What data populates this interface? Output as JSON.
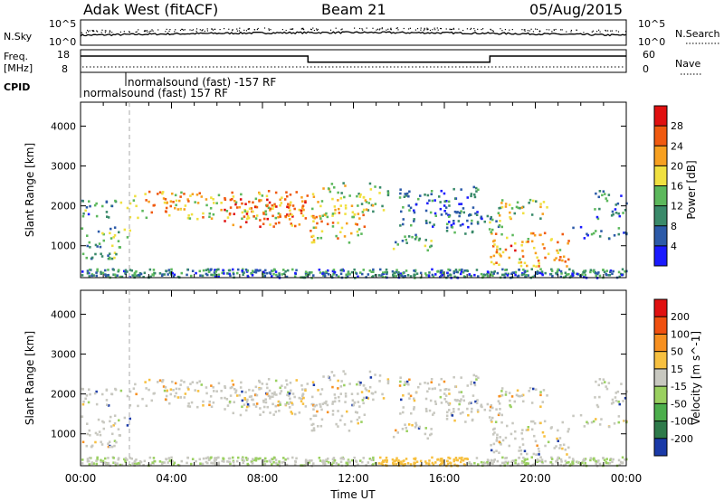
{
  "header": {
    "station": "Adak West (fitACF)",
    "beam": "Beam 21",
    "date": "05/Aug/2015"
  },
  "chart_data": [
    {
      "type": "line",
      "panel": "noise",
      "left_label": "N.Sky",
      "right_label": "N.Search",
      "left_ticks": [
        "10^5",
        "10^0"
      ],
      "right_ticks": [
        "10^5",
        "10^0"
      ]
    },
    {
      "type": "line",
      "panel": "frequency",
      "left_label_top": "Freq.",
      "left_label_bottom": "[MHz]",
      "left_ticks": [
        "18",
        "8"
      ],
      "right_ticks": [
        "60",
        "0"
      ],
      "right_label": "Nave",
      "freq_steps": [
        {
          "start_hour": 0,
          "end_hour": 10,
          "level": 0.72
        },
        {
          "start_hour": 10,
          "end_hour": 18,
          "level": 0.45
        },
        {
          "start_hour": 18,
          "end_hour": 24,
          "level": 0.72
        }
      ]
    },
    {
      "type": "table",
      "panel": "cpid",
      "label": "CPID",
      "entries": [
        {
          "text": "normalsound (fast) -157 RF",
          "start_hour": 2.0
        },
        {
          "text": "normalsound (fast) 157 RF",
          "start_hour": 0.0
        }
      ]
    },
    {
      "type": "heatmap",
      "panel": "power",
      "ylabel": "Slant Range [km]",
      "yticks": [
        1000,
        2000,
        3000,
        4000
      ],
      "ylim": [
        200,
        4600
      ],
      "colorbar_label": "Power [dB]",
      "colorbar_ticks": [
        4,
        8,
        12,
        16,
        20,
        24,
        28
      ],
      "colorbar_range": [
        0,
        32
      ],
      "colors": [
        "#1a1aff",
        "#2c5aa8",
        "#3a8a6a",
        "#5cb85c",
        "#f0e040",
        "#f7a020",
        "#f05a10",
        "#e01010"
      ]
    },
    {
      "type": "heatmap",
      "panel": "velocity",
      "ylabel": "Slant Range [km]",
      "yticks": [
        1000,
        2000,
        3000,
        4000
      ],
      "ylim": [
        200,
        4600
      ],
      "xlabel": "Time UT",
      "xticks": [
        "00:00",
        "04:00",
        "08:00",
        "12:00",
        "16:00",
        "20:00",
        "00:00"
      ],
      "xlim": [
        0,
        24
      ],
      "colorbar_label": "Velocity [m s^-1]",
      "colorbar_ticks": [
        "200",
        "100",
        "50",
        "15",
        "-15",
        "-50",
        "-100",
        "-200"
      ],
      "colors": [
        "#1a3aa8",
        "#2e7a4a",
        "#4cae4c",
        "#9ad060",
        "#c8c8c0",
        "#f7c040",
        "#f79020",
        "#f05010",
        "#e01010"
      ]
    }
  ]
}
